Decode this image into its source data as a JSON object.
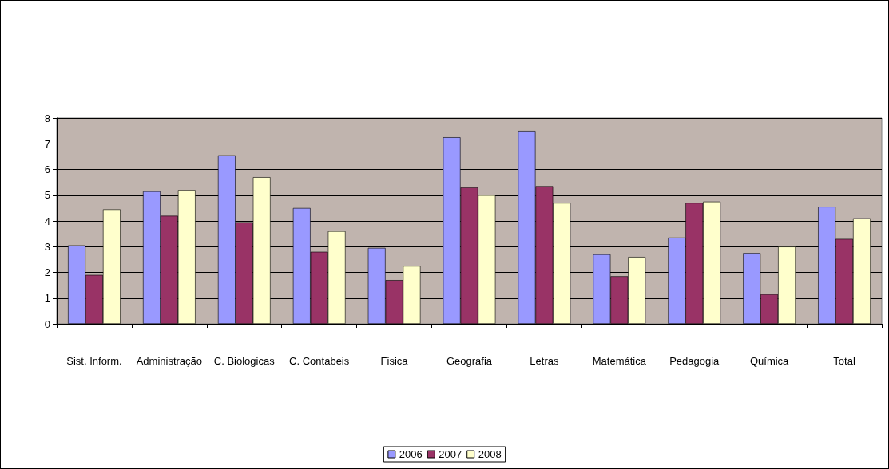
{
  "chart_data": {
    "type": "bar",
    "categories": [
      "Sist. Inform.",
      "Administração",
      "C. Biologicas",
      "C. Contabeis",
      "Fisica",
      "Geografia",
      "Letras",
      "Matemática",
      "Pedagogia",
      "Química",
      "Total"
    ],
    "series": [
      {
        "name": "2006",
        "color": "#9999ff",
        "values": [
          3.05,
          5.15,
          6.55,
          4.5,
          2.95,
          7.25,
          7.5,
          2.7,
          3.35,
          2.75,
          4.55
        ]
      },
      {
        "name": "2007",
        "color": "#993366",
        "values": [
          1.9,
          4.2,
          3.95,
          2.8,
          1.7,
          5.3,
          5.35,
          1.85,
          4.7,
          1.15,
          3.3
        ]
      },
      {
        "name": "2008",
        "color": "#ffffcc",
        "values": [
          4.45,
          5.2,
          5.7,
          3.6,
          2.25,
          5.0,
          4.7,
          2.6,
          4.75,
          3.0,
          4.1
        ]
      }
    ],
    "ylim": [
      0,
      8
    ],
    "yticks": [
      0,
      1,
      2,
      3,
      4,
      5,
      6,
      7,
      8
    ],
    "grid": "y",
    "legend": "bottom"
  }
}
